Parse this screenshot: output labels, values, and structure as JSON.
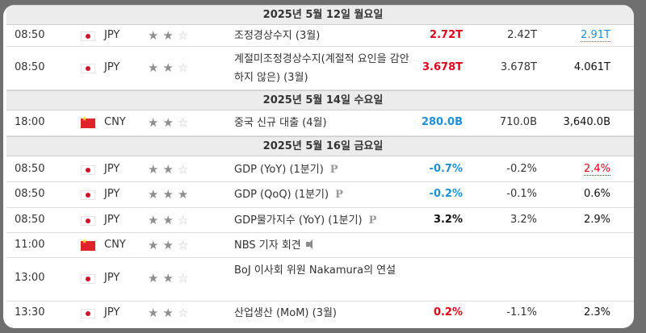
{
  "colors": {
    "actual_up": "#e0001a",
    "actual_down": "#1f8fd6",
    "page_bg": "#6f6f6f"
  },
  "days": [
    {
      "label": "2025년 5월 12일 월요일"
    },
    {
      "label": "2025년 5월 14일 수요일"
    },
    {
      "label": "2025년 5월 16일 금요일"
    }
  ],
  "events": [
    {
      "time": "08:50",
      "flag": "jp",
      "currency": "JPY",
      "importance": 2,
      "name": "조정경상수지 (3월)",
      "actual": "2.72T",
      "forecast": "2.42T",
      "previous": "2.91T"
    },
    {
      "time": "08:50",
      "flag": "jp",
      "currency": "JPY",
      "importance": 2,
      "name": "계절미조정경상수지(계절적 요인을 감안하지 않은) (3월)",
      "actual": "3.678T",
      "forecast": "3.678T",
      "previous": "4.061T"
    },
    {
      "time": "18:00",
      "flag": "cn",
      "currency": "CNY",
      "importance": 2,
      "name": "중국 신규 대출 (4월)",
      "actual": "280.0B",
      "forecast": "710.0B",
      "previous": "3,640.0B"
    },
    {
      "time": "08:50",
      "flag": "jp",
      "currency": "JPY",
      "importance": 2,
      "name": "GDP (YoY) (1분기)",
      "actual": "-0.7%",
      "forecast": "-0.2%",
      "previous": "2.4%"
    },
    {
      "time": "08:50",
      "flag": "jp",
      "currency": "JPY",
      "importance": 3,
      "name": "GDP (QoQ) (1분기)",
      "actual": "-0.2%",
      "forecast": "-0.1%",
      "previous": "0.6%"
    },
    {
      "time": "08:50",
      "flag": "jp",
      "currency": "JPY",
      "importance": 2,
      "name": "GDP물가지수 (YoY) (1분기)",
      "actual": "3.2%",
      "forecast": "3.2%",
      "previous": "2.9%"
    },
    {
      "time": "11:00",
      "flag": "cn",
      "currency": "CNY",
      "importance": 2,
      "name": "NBS 기자 회견",
      "actual": "",
      "forecast": "",
      "previous": ""
    },
    {
      "time": "13:00",
      "flag": "jp",
      "currency": "JPY",
      "importance": 2,
      "name": "BoJ 이사회 위원 Nakamura의 연설",
      "actual": "",
      "forecast": "",
      "previous": ""
    },
    {
      "time": "13:30",
      "flag": "jp",
      "currency": "JPY",
      "importance": 2,
      "name": "산업생산 (MoM) (3월)",
      "actual": "0.2%",
      "forecast": "-1.1%",
      "previous": "2.3%"
    }
  ],
  "icons": {
    "preliminary": "P",
    "speech": "speaker-icon"
  }
}
